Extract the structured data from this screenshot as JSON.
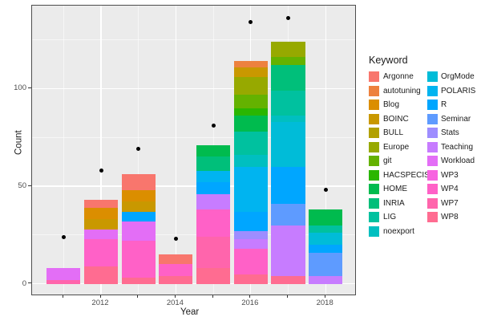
{
  "chart_data": {
    "type": "bar",
    "subtype": "stacked-bar-with-points",
    "title": "",
    "xlabel": "Year",
    "ylabel": "Count",
    "legend_title": "Keyword",
    "legend_position": "right",
    "legend_columns": 2,
    "legend_col1_count": 12,
    "grid": "on",
    "x_major_ticks": [
      2012,
      2014,
      2016,
      2018
    ],
    "x_minor_years": [
      2011,
      2013,
      2015,
      2017
    ],
    "x_all_years": [
      2011,
      2012,
      2013,
      2014,
      2015,
      2016,
      2017,
      2018
    ],
    "y_major_ticks": [
      0,
      50,
      100
    ],
    "y_minor_ticks": [
      25,
      75,
      125
    ],
    "xlim": [
      2010.45,
      2018.55
    ],
    "ylim": [
      -6.6,
      142.5
    ],
    "bar_width_years": 0.9,
    "panel_bg": "#EBEBEB",
    "grid_color": "#FFFFFF",
    "point_color": "#000000",
    "axis_text_color": "#4D4D4D",
    "keywords": [
      {
        "label": "Argonne",
        "color": "#F8766D"
      },
      {
        "label": "autotuning",
        "color": "#ED813E"
      },
      {
        "label": "Blog",
        "color": "#DB8E00"
      },
      {
        "label": "BOINC",
        "color": "#C99800"
      },
      {
        "label": "BULL",
        "color": "#B2A100"
      },
      {
        "label": "Europe",
        "color": "#97A900"
      },
      {
        "label": "git",
        "color": "#64B200"
      },
      {
        "label": "HACSPECIS",
        "color": "#2AB600"
      },
      {
        "label": "HOME",
        "color": "#00BB4E"
      },
      {
        "label": "INRIA",
        "color": "#00BF7A"
      },
      {
        "label": "LIG",
        "color": "#00C19F"
      },
      {
        "label": "noexport",
        "color": "#00BFC0"
      },
      {
        "label": "OrgMode",
        "color": "#00BCD8"
      },
      {
        "label": "POLARIS",
        "color": "#00B4F0"
      },
      {
        "label": "R",
        "color": "#00A6FF"
      },
      {
        "label": "Seminar",
        "color": "#5E9BFF"
      },
      {
        "label": "Stats",
        "color": "#9E8DFF"
      },
      {
        "label": "Teaching",
        "color": "#C77CFF"
      },
      {
        "label": "Workload",
        "color": "#E36EF6"
      },
      {
        "label": "WP3",
        "color": "#F763E0"
      },
      {
        "label": "WP4",
        "color": "#FF61C7"
      },
      {
        "label": "WP7",
        "color": "#FF65AC"
      },
      {
        "label": "WP8",
        "color": "#FF6C91"
      }
    ],
    "bars": [
      {
        "year": 2011,
        "total": 8,
        "point": 24,
        "segments": {
          "Workload": 6,
          "WP7": 2
        }
      },
      {
        "year": 2012,
        "total": 43,
        "point": 58,
        "segments": {
          "Argonne": 4,
          "Blog": 6,
          "BOINC": 5,
          "Workload": 5,
          "WP4": 14,
          "WP8": 9
        }
      },
      {
        "year": 2013,
        "total": 56,
        "point": 69,
        "segments": {
          "Argonne": 8,
          "Blog": 6,
          "BOINC": 5,
          "R": 5,
          "Workload": 10,
          "WP4": 19,
          "WP8": 3
        }
      },
      {
        "year": 2014,
        "total": 15,
        "point": 23,
        "segments": {
          "Argonne": 5,
          "WP4": 6,
          "WP8": 4
        }
      },
      {
        "year": 2015,
        "total": 71,
        "point": 81,
        "segments": {
          "HOME": 6,
          "INRIA": 7,
          "POLARIS": 6,
          "R": 6,
          "Teaching": 8,
          "WP4": 14,
          "WP7": 16,
          "WP8": 8
        }
      },
      {
        "year": 2016,
        "total": 114,
        "point": 134,
        "segments": {
          "autotuning": 3,
          "BOINC": 5,
          "Europe": 9,
          "git": 7,
          "HACSPECIS": 4,
          "HOME": 8,
          "LIG": 12,
          "noexport": 6,
          "POLARIS": 23,
          "R": 10,
          "Stats": 4,
          "Teaching": 5,
          "WP4": 13,
          "WP8": 5
        }
      },
      {
        "year": 2017,
        "total": 124,
        "point": 136,
        "segments": {
          "Europe": 8,
          "git": 4,
          "INRIA": 13,
          "LIG": 13,
          "noexport": 3,
          "OrgMode": 23,
          "R": 19,
          "Seminar": 11,
          "Teaching": 26,
          "WP8": 4
        }
      },
      {
        "year": 2018,
        "total": 38,
        "point": 48,
        "segments": {
          "HOME": 8,
          "LIG": 4,
          "OrgMode": 6,
          "R": 4,
          "Seminar": 12,
          "Teaching": 4
        }
      }
    ]
  }
}
